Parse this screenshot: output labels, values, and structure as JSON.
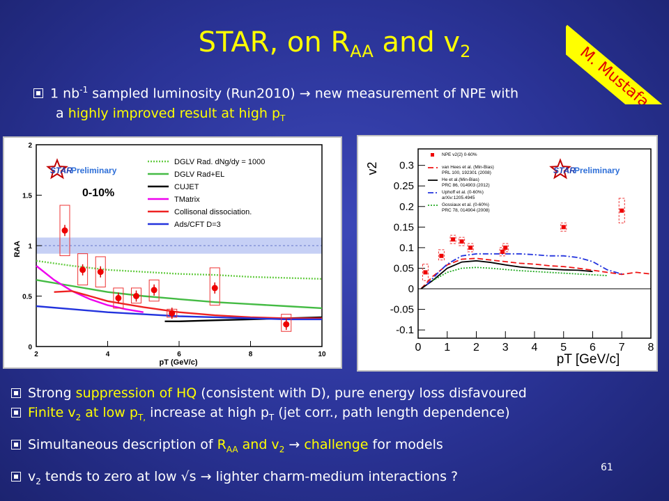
{
  "slide": {
    "title_main": "STAR, on R",
    "title_sub": "AA",
    "title_mid": " and v",
    "title_sub2": "2",
    "banner": "M. Mustafa",
    "page_number": "61"
  },
  "intro": {
    "l1a": "1 nb",
    "l1sup": "-1",
    "l1b": " sampled luminosity (Run2010) ",
    "arrow": "→",
    "l1c": " new measurement of NPE with",
    "l2a": "a ",
    "l2hl": "highly improved result at high p",
    "l2sub": "T"
  },
  "bullets": {
    "b1a": "Strong ",
    "b1hl": "suppression of HQ",
    "b1b": " (consistent with D), pure energy loss disfavoured",
    "b2hl1": "Finite v",
    "b2hlsub": "2",
    "b2hl2": " at low p",
    "b2hlsub2": "T,",
    "b2b": " increase at high p",
    "b2sub": "T",
    "b2c": " (jet corr., path length dependence)",
    "b3a": "Simultaneous description of ",
    "b3hl1": "R",
    "b3hlsub": "AA",
    "b3hl2": " and v",
    "b3hlsub2": "2",
    "b3b": " → ",
    "b3hl3": "challenge",
    "b3c": " for models",
    "b4a": "v",
    "b4sub": "2",
    "b4b": " tends to zero at low √s → lighter charm-medium interactions ?"
  },
  "chart_data": [
    {
      "type": "scatter",
      "title": "",
      "ylabel": "RAA",
      "xlabel": "pT (GeV/c)",
      "xlim": [
        2,
        10
      ],
      "ylim": [
        0,
        2
      ],
      "xticks": [
        2,
        4,
        6,
        8,
        10
      ],
      "yticks": [
        0,
        0.5,
        1,
        1.5,
        2
      ],
      "xtick_labels": [
        "2",
        "4",
        "6",
        "8",
        "10"
      ],
      "ytick_labels": [
        "0",
        "0.5",
        "1",
        "1.5",
        "2"
      ],
      "logo": "STAR",
      "logo_text": "Preliminary",
      "centrality": "0-10%",
      "legend_position": "top-right",
      "data_points": {
        "x": [
          2.8,
          3.3,
          3.8,
          4.3,
          4.8,
          5.3,
          5.8,
          7.0,
          9.0
        ],
        "y": [
          1.15,
          0.76,
          0.74,
          0.48,
          0.5,
          0.56,
          0.33,
          0.58,
          0.22
        ],
        "syst_lo": [
          0.9,
          0.61,
          0.59,
          0.38,
          0.43,
          0.45,
          0.29,
          0.41,
          0.15
        ],
        "syst_hi": [
          1.4,
          0.92,
          0.89,
          0.58,
          0.58,
          0.66,
          0.37,
          0.78,
          0.32
        ]
      },
      "band_1": {
        "lo": 0.92,
        "hi": 1.08
      },
      "series": [
        {
          "name": "DGLV Rad. dNg/dy = 1000",
          "color": "#66cc44",
          "dashed": true,
          "x": [
            2,
            3,
            4,
            5,
            6,
            7,
            8,
            9,
            10
          ],
          "y": [
            0.85,
            0.8,
            0.76,
            0.74,
            0.72,
            0.71,
            0.69,
            0.68,
            0.67
          ]
        },
        {
          "name": "DGLV Rad+EL",
          "color": "#44bb44",
          "dashed": false,
          "x": [
            2,
            3,
            4,
            5,
            6,
            7,
            8,
            9,
            10
          ],
          "y": [
            0.66,
            0.6,
            0.54,
            0.5,
            0.47,
            0.44,
            0.42,
            0.4,
            0.38
          ]
        },
        {
          "name": "CUJET",
          "color": "#000000",
          "dashed": false,
          "x": [
            5.6,
            6,
            7,
            8,
            9,
            10
          ],
          "y": [
            0.25,
            0.25,
            0.26,
            0.27,
            0.28,
            0.29
          ]
        },
        {
          "name": "TMatrix",
          "color": "#ee00ee",
          "dashed": false,
          "x": [
            2,
            2.5,
            3,
            3.5,
            4,
            4.5,
            5
          ],
          "y": [
            0.8,
            0.66,
            0.55,
            0.47,
            0.41,
            0.37,
            0.34
          ]
        },
        {
          "name": "Collisonal dissociation.",
          "color": "#ee2222",
          "dashed": false,
          "x": [
            2.5,
            3,
            3.5,
            4,
            5,
            6,
            7,
            8,
            9,
            10
          ],
          "y": [
            0.54,
            0.55,
            0.5,
            0.45,
            0.39,
            0.34,
            0.31,
            0.29,
            0.28,
            0.28
          ]
        },
        {
          "name": "Ads/CFT D=3",
          "color": "#2233dd",
          "dashed": false,
          "x": [
            2,
            3,
            4,
            5,
            6,
            7,
            8,
            9,
            10
          ],
          "y": [
            0.4,
            0.37,
            0.34,
            0.32,
            0.3,
            0.29,
            0.28,
            0.27,
            0.27
          ]
        }
      ]
    },
    {
      "type": "scatter",
      "title": "",
      "ylabel": "v2",
      "xlabel": "pT [GeV/c]",
      "xlim": [
        0,
        8
      ],
      "ylim": [
        -0.12,
        0.34
      ],
      "xticks": [
        0,
        1,
        2,
        3,
        4,
        5,
        6,
        7,
        8
      ],
      "yticks": [
        -0.1,
        -0.05,
        0,
        0.05,
        0.1,
        0.15,
        0.2,
        0.25,
        0.3
      ],
      "xtick_labels": [
        "0",
        "1",
        "2",
        "3",
        "4",
        "5",
        "6",
        "7",
        "8"
      ],
      "ytick_labels": [
        "-0.1",
        "-0.05",
        "0",
        "0.05",
        "0.1",
        "0.15",
        "0.2",
        "0.25",
        "0.3"
      ],
      "logo": "STAR",
      "logo_text": "Preliminary",
      "legend_position": "top-left",
      "legend_entries": [
        {
          "label": "NPE v2{2} 0-60%",
          "sub": ""
        },
        {
          "label": "van Hees et al. (Min-Bias)",
          "sub": "PRL 100, 192301 (2008)"
        },
        {
          "label": "He et al.(Min-Bias)",
          "sub": "PRC 86, 014903 (2012)"
        },
        {
          "label": "Uphoff et al. (0-60%)",
          "sub": "arXiv:1205.4945"
        },
        {
          "label": "Gossiaux et al. (0-60%)",
          "sub": "PRC 78, 014904 (2008)"
        }
      ],
      "data_points": {
        "x": [
          0.25,
          0.8,
          1.2,
          1.5,
          1.8,
          2.9,
          3.0,
          5.0,
          7.0
        ],
        "y": [
          0.04,
          0.08,
          0.12,
          0.115,
          0.1,
          0.09,
          0.1,
          0.15,
          0.19
        ],
        "syst_lo": [
          0.02,
          0.07,
          0.11,
          0.105,
          0.09,
          0.08,
          0.09,
          0.14,
          0.16
        ],
        "syst_hi": [
          0.06,
          0.095,
          0.13,
          0.125,
          0.11,
          0.1,
          0.11,
          0.16,
          0.22
        ]
      },
      "series": [
        {
          "name": "van Hees et al. (Min-Bias)",
          "color": "#ee1111",
          "style": "dash",
          "x": [
            0.1,
            0.5,
            1,
            1.5,
            2,
            2.5,
            3,
            3.5,
            4,
            4.5,
            5,
            5.5,
            6,
            6.5,
            7,
            7.5,
            8
          ],
          "y": [
            0.0,
            0.03,
            0.058,
            0.072,
            0.074,
            0.07,
            0.066,
            0.062,
            0.06,
            0.056,
            0.054,
            0.05,
            0.045,
            0.04,
            0.035,
            0.04,
            0.036
          ]
        },
        {
          "name": "He et al.(Min-Bias)",
          "color": "#000000",
          "style": "solid",
          "x": [
            0.1,
            0.5,
            1,
            1.5,
            2,
            2.5,
            3,
            3.5,
            4,
            4.5,
            5,
            5.5,
            6
          ],
          "y": [
            0.0,
            0.02,
            0.05,
            0.065,
            0.068,
            0.064,
            0.058,
            0.053,
            0.05,
            0.048,
            0.046,
            0.045,
            0.042
          ]
        },
        {
          "name": "Uphoff et al. (0-60%)",
          "color": "#2233dd",
          "style": "dashdot",
          "x": [
            0.3,
            0.7,
            1,
            1.5,
            2,
            2.5,
            3,
            3.5,
            4,
            4.5,
            5,
            5.5,
            6,
            6.5,
            7
          ],
          "y": [
            0.01,
            0.04,
            0.06,
            0.08,
            0.085,
            0.085,
            0.085,
            0.085,
            0.083,
            0.08,
            0.08,
            0.076,
            0.066,
            0.046,
            0.036
          ]
        },
        {
          "name": "Gossiaux et al. (0-60%)",
          "color": "#22aa22",
          "style": "dot",
          "x": [
            0.5,
            1,
            1.5,
            2,
            2.5,
            3,
            3.5,
            4,
            4.5,
            5,
            5.5,
            6,
            6.5
          ],
          "y": [
            0.02,
            0.04,
            0.05,
            0.052,
            0.05,
            0.047,
            0.044,
            0.042,
            0.04,
            0.038,
            0.036,
            0.034,
            0.032
          ]
        }
      ]
    }
  ]
}
